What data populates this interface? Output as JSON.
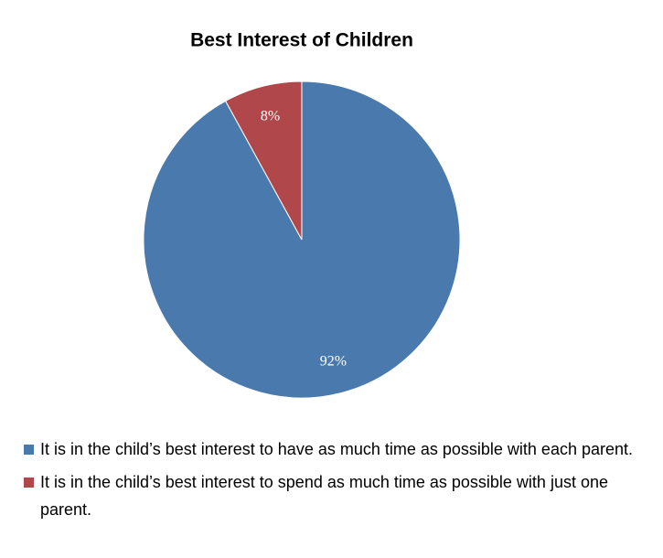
{
  "chart_data": {
    "type": "pie",
    "title": "Best Interest of Children",
    "categories": [
      "It is in the child’s best interest to have as much time as possible with each parent.",
      "It is in the child’s best interest to spend as much time as possible with just one parent."
    ],
    "values": [
      92,
      8
    ],
    "value_labels": [
      "92%",
      "8%"
    ],
    "colors": [
      "#4a7aad",
      "#b0474a"
    ]
  }
}
